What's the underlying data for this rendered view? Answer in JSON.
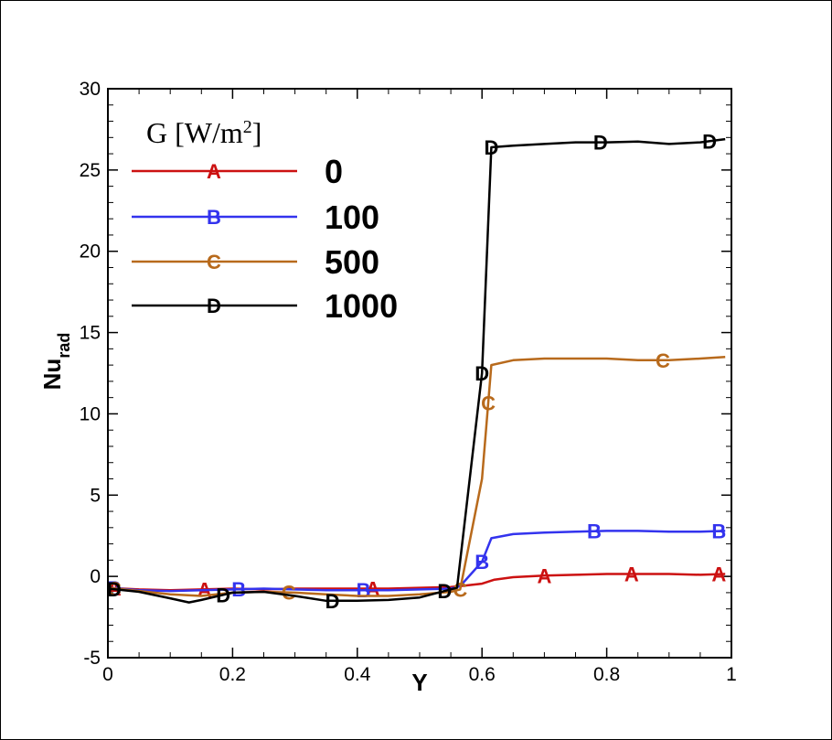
{
  "chart_data": {
    "type": "line",
    "xlabel": "Y",
    "ylabel_main": "Nu",
    "ylabel_sub": "rad",
    "xlim": [
      0,
      1
    ],
    "ylim": [
      -5,
      30
    ],
    "x_ticks": [
      0,
      0.2,
      0.4,
      0.6,
      0.8,
      1
    ],
    "x_tick_labels": [
      "0",
      "0.2",
      "0.4",
      "0.6",
      "0.8",
      "1"
    ],
    "y_ticks": [
      -5,
      0,
      5,
      10,
      15,
      20,
      25,
      30
    ],
    "y_tick_labels": [
      "-5",
      "0",
      "5",
      "10",
      "15",
      "20",
      "25",
      "30"
    ],
    "legend": {
      "title_main": "G [W/m",
      "title_sup": "2",
      "title_end": "]",
      "placement": "top-left"
    },
    "series": [
      {
        "name": "0",
        "marker": "A",
        "color": "#cc1111",
        "x": [
          0.0,
          0.05,
          0.1,
          0.15,
          0.2,
          0.25,
          0.3,
          0.35,
          0.4,
          0.45,
          0.5,
          0.55,
          0.565,
          0.6,
          0.62,
          0.65,
          0.7,
          0.75,
          0.8,
          0.85,
          0.9,
          0.95,
          0.99
        ],
        "y": [
          -0.7,
          -0.8,
          -0.85,
          -0.8,
          -0.75,
          -0.8,
          -0.75,
          -0.75,
          -0.75,
          -0.75,
          -0.7,
          -0.65,
          -0.6,
          -0.45,
          -0.2,
          -0.05,
          0.05,
          0.1,
          0.15,
          0.15,
          0.15,
          0.1,
          0.15
        ],
        "marker_x": [
          0.01,
          0.155,
          0.425,
          0.7,
          0.84,
          0.98
        ]
      },
      {
        "name": "100",
        "marker": "B",
        "color": "#3333ee",
        "x": [
          0.0,
          0.05,
          0.1,
          0.15,
          0.2,
          0.25,
          0.3,
          0.35,
          0.4,
          0.45,
          0.5,
          0.55,
          0.565,
          0.6,
          0.615,
          0.65,
          0.7,
          0.75,
          0.8,
          0.85,
          0.9,
          0.95,
          0.99
        ],
        "y": [
          -0.7,
          -0.85,
          -0.9,
          -0.85,
          -0.8,
          -0.75,
          -0.8,
          -0.85,
          -0.85,
          -0.85,
          -0.8,
          -0.75,
          -0.6,
          0.9,
          2.35,
          2.6,
          2.7,
          2.75,
          2.8,
          2.8,
          2.75,
          2.75,
          2.8
        ],
        "marker_x": [
          0.01,
          0.21,
          0.41,
          0.6,
          0.78,
          0.98
        ]
      },
      {
        "name": "500",
        "marker": "C",
        "color": "#b86a1c",
        "x": [
          0.0,
          0.05,
          0.1,
          0.15,
          0.2,
          0.25,
          0.3,
          0.35,
          0.4,
          0.45,
          0.5,
          0.55,
          0.565,
          0.6,
          0.615,
          0.65,
          0.7,
          0.75,
          0.8,
          0.85,
          0.9,
          0.95,
          0.99
        ],
        "y": [
          -0.7,
          -0.9,
          -1.1,
          -1.2,
          -1.0,
          -0.95,
          -1.0,
          -1.1,
          -1.2,
          -1.2,
          -1.1,
          -0.95,
          -0.8,
          6.0,
          13.0,
          13.3,
          13.4,
          13.4,
          13.4,
          13.3,
          13.3,
          13.4,
          13.5
        ],
        "marker_x": [
          0.01,
          0.29,
          0.565,
          0.61,
          0.89
        ]
      },
      {
        "name": "1000",
        "marker": "D",
        "color": "#000000",
        "x": [
          0.0,
          0.05,
          0.1,
          0.13,
          0.15,
          0.2,
          0.25,
          0.3,
          0.35,
          0.4,
          0.45,
          0.5,
          0.56,
          0.6,
          0.615,
          0.65,
          0.7,
          0.75,
          0.8,
          0.85,
          0.9,
          0.95,
          0.99
        ],
        "y": [
          -0.75,
          -0.95,
          -1.35,
          -1.6,
          -1.45,
          -1.0,
          -0.95,
          -1.2,
          -1.5,
          -1.5,
          -1.45,
          -1.3,
          -0.7,
          12.5,
          26.4,
          26.5,
          26.6,
          26.7,
          26.7,
          26.75,
          26.6,
          26.7,
          26.9
        ],
        "marker_x": [
          0.01,
          0.185,
          0.36,
          0.54,
          0.6,
          0.615,
          0.79,
          0.965
        ]
      }
    ]
  }
}
